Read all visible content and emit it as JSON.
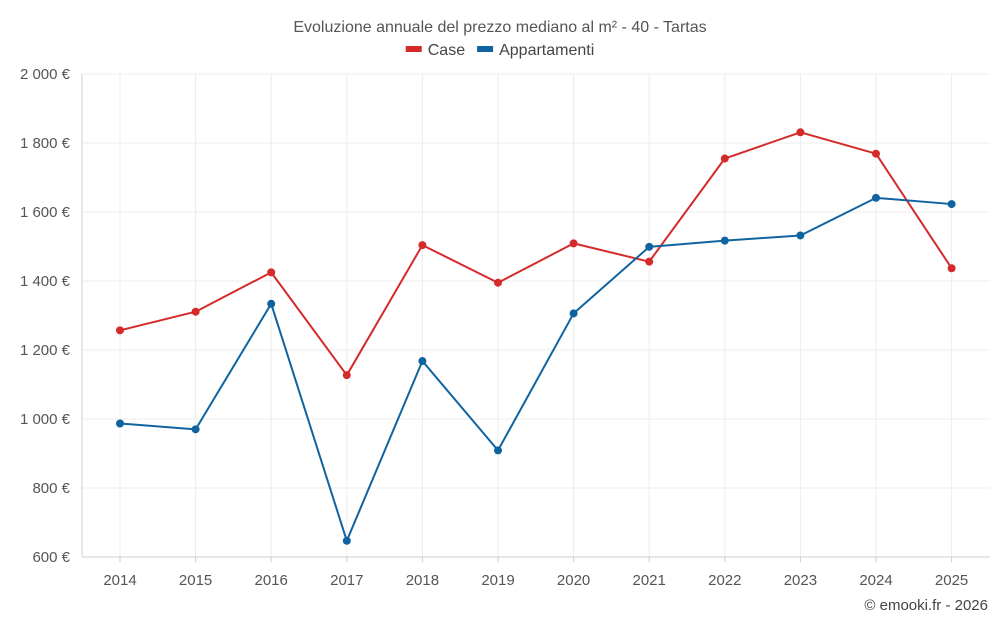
{
  "chart_data": {
    "type": "line",
    "title": "Evoluzione annuale del prezzo mediano al m² - 40 - Tartas",
    "categories": [
      "2014",
      "2015",
      "2016",
      "2017",
      "2018",
      "2019",
      "2020",
      "2021",
      "2022",
      "2023",
      "2024",
      "2025"
    ],
    "ylim": [
      600,
      2000
    ],
    "yticks": [
      600,
      800,
      1000,
      1200,
      1400,
      1600,
      1800,
      2000
    ],
    "ytick_labels": [
      "600 €",
      "800 €",
      "1 000 €",
      "1 200 €",
      "1 400 €",
      "1 600 €",
      "1 800 €",
      "2 000 €"
    ],
    "grid": true,
    "legend_position": "top-center",
    "series": [
      {
        "name": "Case",
        "color": "#d42a2a",
        "values": [
          1257,
          1311,
          1425,
          1127,
          1504,
          1395,
          1509,
          1456,
          1755,
          1831,
          1769,
          1437
        ]
      },
      {
        "name": "Appartamenti",
        "color": "#0f63a0",
        "values": [
          987,
          970,
          1334,
          647,
          1168,
          909,
          1306,
          1499,
          1517,
          1532,
          1641,
          1623
        ]
      }
    ],
    "credit": "© emooki.fr - 2026"
  }
}
